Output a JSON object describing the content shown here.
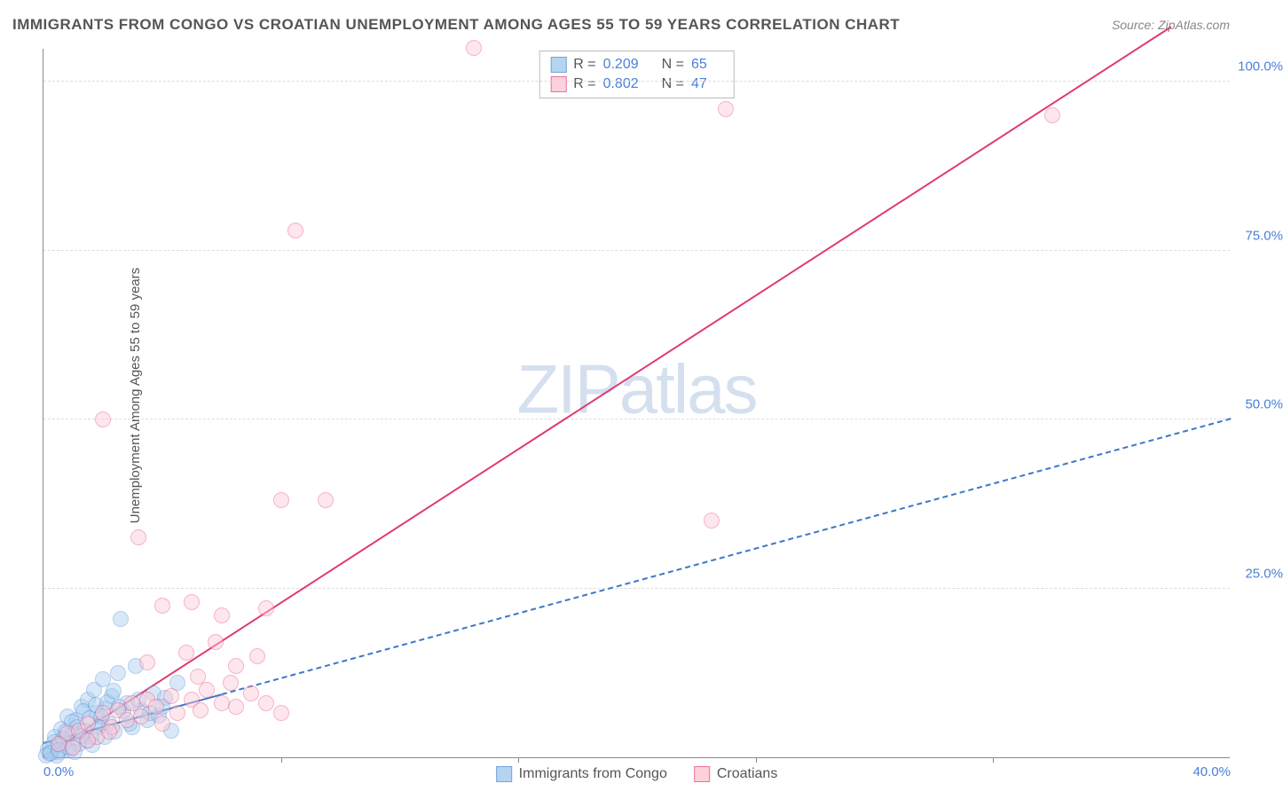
{
  "title": "IMMIGRANTS FROM CONGO VS CROATIAN UNEMPLOYMENT AMONG AGES 55 TO 59 YEARS CORRELATION CHART",
  "source": "Source: ZipAtlas.com",
  "ylabel": "Unemployment Among Ages 55 to 59 years",
  "watermark": "ZIPatlas",
  "chart": {
    "type": "scatter",
    "xlim": [
      0,
      40
    ],
    "ylim": [
      0,
      105
    ],
    "ytick_values": [
      25,
      50,
      75,
      100
    ],
    "ytick_labels": [
      "25.0%",
      "50.0%",
      "75.0%",
      "100.0%"
    ],
    "xtick_values": [
      0,
      40
    ],
    "xtick_labels": [
      "0.0%",
      "40.0%"
    ],
    "xtick_minor": [
      8,
      16,
      24,
      32
    ],
    "background_color": "#ffffff",
    "grid_color": "#dddddd",
    "marker_radius": 9,
    "marker_stroke_width": 1.5,
    "series": [
      {
        "name": "Immigrants from Congo",
        "fill_color": "#a9cdf0",
        "fill_opacity": 0.45,
        "stroke_color": "#5a94d6",
        "R": "0.209",
        "N": "65",
        "trend": {
          "x1": 0,
          "y1": 2,
          "x2": 40,
          "y2": 50,
          "color": "#3d77c7",
          "width": 2,
          "dash": "5 5",
          "solid_until_x": 6
        },
        "points": [
          [
            0.3,
            1.5
          ],
          [
            0.4,
            3.0
          ],
          [
            0.5,
            0.8
          ],
          [
            0.6,
            4.2
          ],
          [
            0.7,
            2.5
          ],
          [
            0.8,
            6.0
          ],
          [
            0.9,
            1.0
          ],
          [
            1.0,
            3.5
          ],
          [
            1.1,
            5.5
          ],
          [
            1.2,
            2.0
          ],
          [
            1.3,
            7.5
          ],
          [
            1.4,
            4.0
          ],
          [
            1.5,
            8.5
          ],
          [
            1.6,
            3.0
          ],
          [
            1.7,
            10.0
          ],
          [
            1.8,
            6.5
          ],
          [
            1.9,
            4.8
          ],
          [
            2.0,
            11.5
          ],
          [
            2.1,
            7.2
          ],
          [
            2.2,
            5.0
          ],
          [
            2.3,
            9.0
          ],
          [
            2.4,
            3.8
          ],
          [
            2.5,
            12.5
          ],
          [
            2.7,
            6.8
          ],
          [
            2.8,
            8.0
          ],
          [
            3.0,
            4.5
          ],
          [
            3.1,
            13.5
          ],
          [
            3.3,
            7.0
          ],
          [
            3.5,
            5.5
          ],
          [
            3.7,
            9.5
          ],
          [
            3.9,
            6.2
          ],
          [
            4.1,
            8.8
          ],
          [
            4.3,
            4.0
          ],
          [
            4.5,
            11.0
          ],
          [
            2.6,
            20.5
          ],
          [
            0.2,
            0.5
          ],
          [
            0.35,
            2.2
          ],
          [
            0.55,
            1.8
          ],
          [
            0.75,
            3.8
          ],
          [
            0.95,
            5.2
          ],
          [
            1.15,
            4.5
          ],
          [
            1.35,
            6.8
          ],
          [
            1.55,
            5.8
          ],
          [
            1.75,
            7.8
          ],
          [
            1.95,
            6.0
          ],
          [
            2.15,
            8.2
          ],
          [
            2.35,
            9.8
          ],
          [
            2.55,
            7.5
          ],
          [
            2.9,
            5.0
          ],
          [
            3.2,
            8.5
          ],
          [
            3.6,
            6.5
          ],
          [
            4.0,
            7.5
          ],
          [
            0.15,
            1.2
          ],
          [
            0.45,
            0.3
          ],
          [
            0.65,
            2.8
          ],
          [
            0.85,
            1.5
          ],
          [
            1.05,
            0.8
          ],
          [
            1.25,
            3.2
          ],
          [
            1.45,
            2.5
          ],
          [
            1.65,
            1.8
          ],
          [
            1.85,
            4.5
          ],
          [
            2.05,
            3.0
          ],
          [
            0.1,
            0.2
          ],
          [
            0.25,
            0.6
          ],
          [
            0.5,
            1.1
          ]
        ]
      },
      {
        "name": "Croatians",
        "fill_color": "#fcc9d6",
        "fill_opacity": 0.45,
        "stroke_color": "#e85a8a",
        "R": "0.802",
        "N": "47",
        "trend": {
          "x1": 0,
          "y1": 0,
          "x2": 38,
          "y2": 108,
          "color": "#e03a76",
          "width": 2.5,
          "dash": null
        },
        "points": [
          [
            0.5,
            2.0
          ],
          [
            0.8,
            3.5
          ],
          [
            1.0,
            1.5
          ],
          [
            1.2,
            4.0
          ],
          [
            1.5,
            5.0
          ],
          [
            1.8,
            3.0
          ],
          [
            2.0,
            6.5
          ],
          [
            2.3,
            4.5
          ],
          [
            2.5,
            7.0
          ],
          [
            2.8,
            5.5
          ],
          [
            3.0,
            8.0
          ],
          [
            3.3,
            6.0
          ],
          [
            3.5,
            8.5
          ],
          [
            3.8,
            7.5
          ],
          [
            4.0,
            5.0
          ],
          [
            4.3,
            9.0
          ],
          [
            4.5,
            6.5
          ],
          [
            5.0,
            8.5
          ],
          [
            5.3,
            7.0
          ],
          [
            5.5,
            10.0
          ],
          [
            6.0,
            8.0
          ],
          [
            6.3,
            11.0
          ],
          [
            6.5,
            7.5
          ],
          [
            7.0,
            9.5
          ],
          [
            7.5,
            8.0
          ],
          [
            8.0,
            6.5
          ],
          [
            3.5,
            14.0
          ],
          [
            4.8,
            15.5
          ],
          [
            5.2,
            12.0
          ],
          [
            5.8,
            17.0
          ],
          [
            6.5,
            13.5
          ],
          [
            7.2,
            15.0
          ],
          [
            4.0,
            22.5
          ],
          [
            5.0,
            23.0
          ],
          [
            6.0,
            21.0
          ],
          [
            7.5,
            22.0
          ],
          [
            3.2,
            32.5
          ],
          [
            8.0,
            38.0
          ],
          [
            9.5,
            38.0
          ],
          [
            2.0,
            50.0
          ],
          [
            8.5,
            78.0
          ],
          [
            23.0,
            96.0
          ],
          [
            34.0,
            95.0
          ],
          [
            14.5,
            105.0
          ],
          [
            22.5,
            35.0
          ],
          [
            1.5,
            2.5
          ],
          [
            2.2,
            3.8
          ]
        ]
      }
    ]
  },
  "legend": {
    "series1_label": "Immigrants from Congo",
    "series2_label": "Croatians"
  }
}
